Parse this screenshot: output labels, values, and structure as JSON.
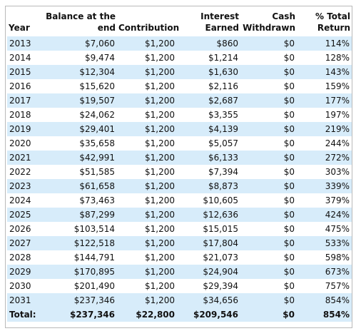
{
  "headers": {
    "year": "Year",
    "balance_line1": "Balance at the",
    "balance_line2": "end",
    "contribution": "Contribution",
    "interest_line1": "Interest",
    "interest_line2": "Earned",
    "withdrawn_line1": "Cash",
    "withdrawn_line2": "Withdrawn",
    "return_line1": "% Total",
    "return_line2": "Return"
  },
  "rows": [
    {
      "year": "2013",
      "balance": "$7,060",
      "contribution": "$1,200",
      "interest": "$860",
      "withdrawn": "$0",
      "return": "114%"
    },
    {
      "year": "2014",
      "balance": "$9,474",
      "contribution": "$1,200",
      "interest": "$1,214",
      "withdrawn": "$0",
      "return": "128%"
    },
    {
      "year": "2015",
      "balance": "$12,304",
      "contribution": "$1,200",
      "interest": "$1,630",
      "withdrawn": "$0",
      "return": "143%"
    },
    {
      "year": "2016",
      "balance": "$15,620",
      "contribution": "$1,200",
      "interest": "$2,116",
      "withdrawn": "$0",
      "return": "159%"
    },
    {
      "year": "2017",
      "balance": "$19,507",
      "contribution": "$1,200",
      "interest": "$2,687",
      "withdrawn": "$0",
      "return": "177%"
    },
    {
      "year": "2018",
      "balance": "$24,062",
      "contribution": "$1,200",
      "interest": "$3,355",
      "withdrawn": "$0",
      "return": "197%"
    },
    {
      "year": "2019",
      "balance": "$29,401",
      "contribution": "$1,200",
      "interest": "$4,139",
      "withdrawn": "$0",
      "return": "219%"
    },
    {
      "year": "2020",
      "balance": "$35,658",
      "contribution": "$1,200",
      "interest": "$5,057",
      "withdrawn": "$0",
      "return": "244%"
    },
    {
      "year": "2021",
      "balance": "$42,991",
      "contribution": "$1,200",
      "interest": "$6,133",
      "withdrawn": "$0",
      "return": "272%"
    },
    {
      "year": "2022",
      "balance": "$51,585",
      "contribution": "$1,200",
      "interest": "$7,394",
      "withdrawn": "$0",
      "return": "303%"
    },
    {
      "year": "2023",
      "balance": "$61,658",
      "contribution": "$1,200",
      "interest": "$8,873",
      "withdrawn": "$0",
      "return": "339%"
    },
    {
      "year": "2024",
      "balance": "$73,463",
      "contribution": "$1,200",
      "interest": "$10,605",
      "withdrawn": "$0",
      "return": "379%"
    },
    {
      "year": "2025",
      "balance": "$87,299",
      "contribution": "$1,200",
      "interest": "$12,636",
      "withdrawn": "$0",
      "return": "424%"
    },
    {
      "year": "2026",
      "balance": "$103,514",
      "contribution": "$1,200",
      "interest": "$15,015",
      "withdrawn": "$0",
      "return": "475%"
    },
    {
      "year": "2027",
      "balance": "$122,518",
      "contribution": "$1,200",
      "interest": "$17,804",
      "withdrawn": "$0",
      "return": "533%"
    },
    {
      "year": "2028",
      "balance": "$144,791",
      "contribution": "$1,200",
      "interest": "$21,073",
      "withdrawn": "$0",
      "return": "598%"
    },
    {
      "year": "2029",
      "balance": "$170,895",
      "contribution": "$1,200",
      "interest": "$24,904",
      "withdrawn": "$0",
      "return": "673%"
    },
    {
      "year": "2030",
      "balance": "$201,490",
      "contribution": "$1,200",
      "interest": "$29,394",
      "withdrawn": "$0",
      "return": "757%"
    },
    {
      "year": "2031",
      "balance": "$237,346",
      "contribution": "$1,200",
      "interest": "$34,656",
      "withdrawn": "$0",
      "return": "854%"
    }
  ],
  "total": {
    "label": "Total:",
    "balance": "$237,346",
    "contribution": "$22,800",
    "interest": "$209,546",
    "withdrawn": "$0",
    "return": "854%"
  },
  "colors": {
    "alt_row_background": "#d7ecfa",
    "frame_border": "#b9b9b9"
  }
}
